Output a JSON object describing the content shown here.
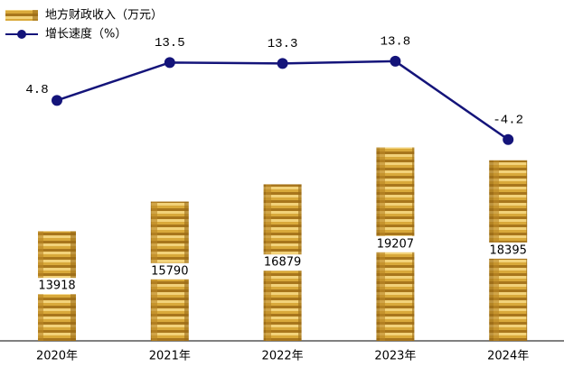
{
  "chart_data": {
    "type": "bar-line",
    "categories": [
      "2020年",
      "2021年",
      "2022年",
      "2023年",
      "2024年"
    ],
    "series": [
      {
        "name": "地方财政收入（万元）",
        "type": "bar",
        "color": "#d4a531",
        "values": [
          13918,
          15790,
          16879,
          19207,
          18395
        ]
      },
      {
        "name": "增长速度（%）",
        "type": "line",
        "axis": "y2",
        "color": "#14147a",
        "values": [
          4.8,
          13.5,
          13.3,
          13.8,
          -4.2
        ]
      }
    ],
    "ylim": [
      7000,
      21000
    ],
    "y2lim": [
      -20,
      20
    ],
    "legend": "top-left"
  }
}
